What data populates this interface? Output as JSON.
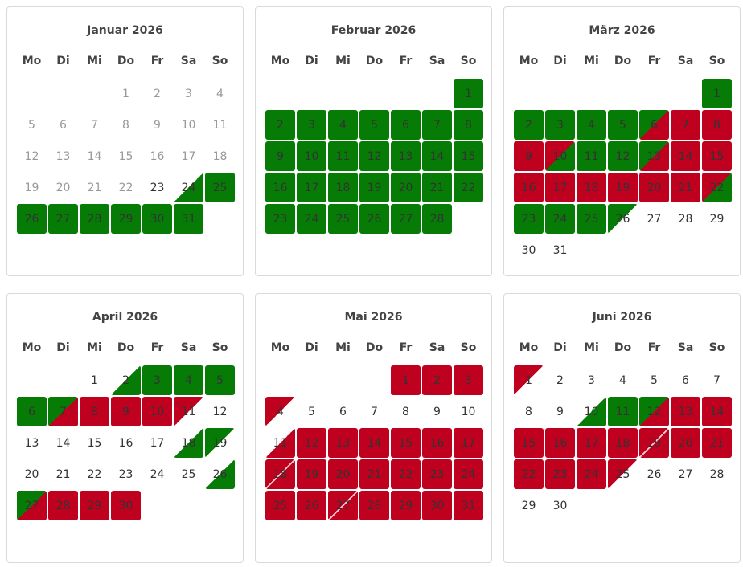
{
  "colors": {
    "booked": "#c0001f",
    "available": "#067c06",
    "past_text": "#999999"
  },
  "legend_states": {
    "p": "past",
    "f": "free",
    "g": "available",
    "r": "booked",
    "x/y": "split: top-left / bottom-right (w = none)"
  },
  "weekdays": [
    "Mo",
    "Di",
    "Mi",
    "Do",
    "Fr",
    "Sa",
    "So"
  ],
  "months": [
    {
      "title": "Januar 2026",
      "offset": 3,
      "days": [
        "p",
        "p",
        "p",
        "p",
        "p",
        "p",
        "p",
        "p",
        "p",
        "p",
        "p",
        "p",
        "p",
        "p",
        "p",
        "p",
        "p",
        "p",
        "p",
        "p",
        "p",
        "p",
        "f",
        "w/g",
        "g",
        "g",
        "g",
        "g",
        "g",
        "g",
        "g"
      ]
    },
    {
      "title": "Februar 2026",
      "offset": 6,
      "days": [
        "g",
        "g",
        "g",
        "g",
        "g",
        "g",
        "g",
        "g",
        "g",
        "g",
        "g",
        "g",
        "g",
        "g",
        "g",
        "g",
        "g",
        "g",
        "g",
        "g",
        "g",
        "g",
        "g",
        "g",
        "g",
        "g",
        "g",
        "g"
      ]
    },
    {
      "title": "März 2026",
      "offset": 6,
      "days": [
        "g",
        "g",
        "g",
        "g",
        "g",
        "g/r",
        "r",
        "r",
        "r",
        "r/g",
        "g",
        "g",
        "g/r",
        "r",
        "r",
        "r",
        "r",
        "r",
        "r",
        "r",
        "r",
        "r/g",
        "g",
        "g",
        "g",
        "g/w",
        "f",
        "f",
        "f",
        "f",
        "f"
      ]
    },
    {
      "title": "April 2026",
      "offset": 2,
      "days": [
        "f",
        "w/g",
        "g",
        "g",
        "g",
        "g",
        "g/r",
        "r",
        "r",
        "r",
        "r/w",
        "f",
        "f",
        "f",
        "f",
        "f",
        "f",
        "w/g",
        "g/w",
        "f",
        "f",
        "f",
        "f",
        "f",
        "f",
        "w/g",
        "g/r",
        "r",
        "r",
        "r"
      ]
    },
    {
      "title": "Mai 2026",
      "offset": 4,
      "days": [
        "r",
        "r",
        "r",
        "r/w",
        "f",
        "f",
        "f",
        "f",
        "f",
        "f",
        "w/r",
        "r",
        "r",
        "r",
        "r",
        "r",
        "r",
        "r/r",
        "r",
        "r",
        "r",
        "r",
        "r",
        "r",
        "r",
        "r",
        "r/r",
        "r",
        "r",
        "r",
        "r"
      ]
    },
    {
      "title": "Juni 2026",
      "offset": 0,
      "days": [
        "r/w",
        "f",
        "f",
        "f",
        "f",
        "f",
        "f",
        "f",
        "f",
        "w/g",
        "g",
        "g/r",
        "r",
        "r",
        "r",
        "r",
        "r",
        "r",
        "r/r",
        "r",
        "r",
        "r",
        "r",
        "r",
        "r/w",
        "f",
        "f",
        "f",
        "f",
        "f"
      ]
    }
  ]
}
